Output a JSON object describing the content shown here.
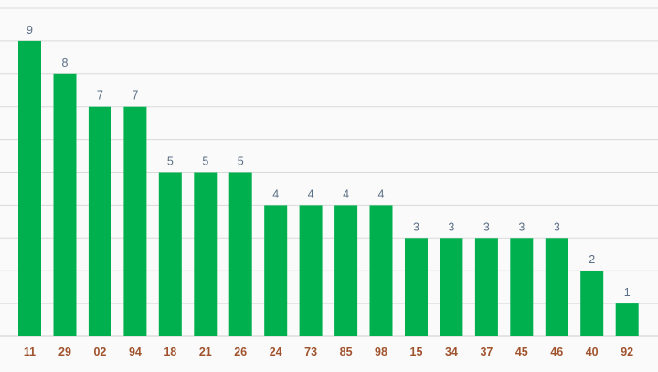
{
  "colors": {
    "bar": "#00b04f",
    "value_label": "#5b6f86",
    "category_label": "#a0522d",
    "grid": "#d9d9d9",
    "background": "#fafafa"
  },
  "chart_data": {
    "type": "bar",
    "title": "",
    "xlabel": "",
    "ylabel": "",
    "categories": [
      "11",
      "29",
      "02",
      "94",
      "18",
      "21",
      "26",
      "24",
      "73",
      "85",
      "98",
      "15",
      "34",
      "37",
      "45",
      "46",
      "40",
      "92"
    ],
    "values": [
      9,
      8,
      7,
      7,
      5,
      5,
      5,
      4,
      4,
      4,
      4,
      3,
      3,
      3,
      3,
      3,
      2,
      1
    ],
    "ylim": [
      0,
      10
    ],
    "grid": true,
    "data_labels": true,
    "legend": "none"
  }
}
